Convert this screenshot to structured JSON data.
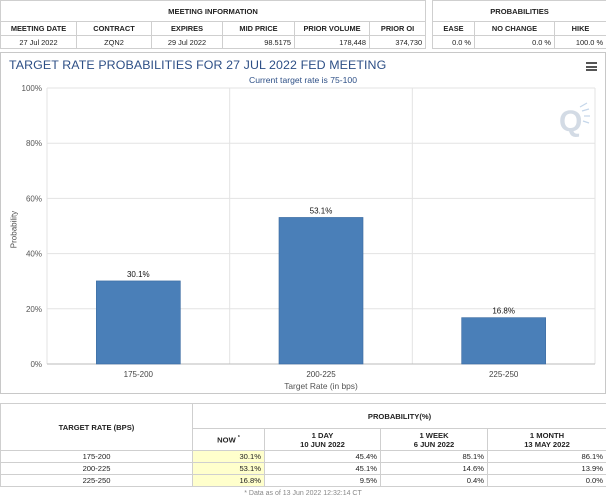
{
  "meeting_info": {
    "section_title": "MEETING INFORMATION",
    "headers": [
      "MEETING DATE",
      "CONTRACT",
      "EXPIRES",
      "MID PRICE",
      "PRIOR VOLUME",
      "PRIOR OI"
    ],
    "values": [
      "27 Jul 2022",
      "ZQN2",
      "29 Jul 2022",
      "98.5175",
      "178,448",
      "374,730"
    ]
  },
  "probabilities": {
    "section_title": "PROBABILITIES",
    "headers": [
      "EASE",
      "NO CHANGE",
      "HIKE"
    ],
    "values": [
      "0.0 %",
      "0.0 %",
      "100.0 %"
    ]
  },
  "chart": {
    "menu_icon": "hamburger-menu-icon",
    "watermark_icon": "q-logo-watermark"
  },
  "chart_data": {
    "type": "bar",
    "title": "TARGET RATE PROBABILITIES FOR 27 JUL 2022 FED MEETING",
    "subtitle": "Current target rate is 75-100",
    "xlabel": "Target Rate (in bps)",
    "ylabel": "Probability",
    "categories": [
      "175-200",
      "200-225",
      "225-250"
    ],
    "values": [
      30.1,
      53.1,
      16.8
    ],
    "data_labels": [
      "30.1%",
      "53.1%",
      "16.8%"
    ],
    "ylim": [
      0,
      100
    ],
    "yticks": [
      "0%",
      "20%",
      "40%",
      "60%",
      "80%",
      "100%"
    ],
    "ytick_values": [
      0,
      20,
      40,
      60,
      80,
      100
    ],
    "bar_color": "#4a7fb8",
    "grid": true,
    "legend": "none"
  },
  "rate_table": {
    "target_header": "TARGET RATE (BPS)",
    "prob_header": "PROBABILITY(%)",
    "now_label": "NOW",
    "now_mark": "*",
    "columns": [
      {
        "line1": "1 DAY",
        "line2": "10 JUN 2022"
      },
      {
        "line1": "1 WEEK",
        "line2": "6 JUN 2022"
      },
      {
        "line1": "1 MONTH",
        "line2": "13 MAY 2022"
      }
    ],
    "rows": [
      {
        "rate": "175-200",
        "now": "30.1%",
        "day": "45.4%",
        "week": "85.1%",
        "month": "86.1%"
      },
      {
        "rate": "200-225",
        "now": "53.1%",
        "day": "45.1%",
        "week": "14.6%",
        "month": "13.9%"
      },
      {
        "rate": "225-250",
        "now": "16.8%",
        "day": "9.5%",
        "week": "0.4%",
        "month": "0.0%"
      }
    ],
    "highlight_color": "#ffffcc"
  },
  "footnote": "* Data as of 13 Jun 2022 12:32:14 CT"
}
